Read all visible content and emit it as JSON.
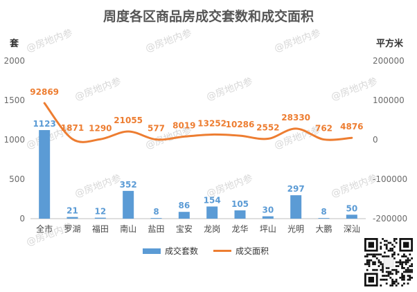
{
  "chart_data": {
    "type": "bar+line",
    "title": "周度各区商品房成交套数和成交面积",
    "left_unit": "套",
    "right_unit": "平方米",
    "categories": [
      "全市",
      "罗湖",
      "福田",
      "南山",
      "盐田",
      "宝安",
      "龙岗",
      "龙华",
      "坪山",
      "光明",
      "大鹏",
      "深汕"
    ],
    "left_axis": {
      "min": 0,
      "max": 2000,
      "ticks": [
        0,
        500,
        1000,
        1500,
        2000
      ]
    },
    "right_axis": {
      "min": -200000,
      "max": 200000,
      "ticks": [
        -200000,
        -100000,
        0,
        100000,
        200000
      ]
    },
    "series": [
      {
        "name": "成交套数",
        "kind": "bar",
        "axis": "left",
        "color": "#5b9bd5",
        "values": [
          1123,
          21,
          12,
          352,
          8,
          86,
          154,
          105,
          30,
          297,
          8,
          50
        ]
      },
      {
        "name": "成交面积",
        "kind": "line",
        "axis": "right",
        "color": "#ed7d31",
        "values": [
          92869,
          1871,
          1290,
          21055,
          577,
          8019,
          13252,
          10286,
          2552,
          28330,
          762,
          4876
        ]
      }
    ],
    "legend_position": "bottom",
    "grid": false
  },
  "watermark": "@房地内参"
}
